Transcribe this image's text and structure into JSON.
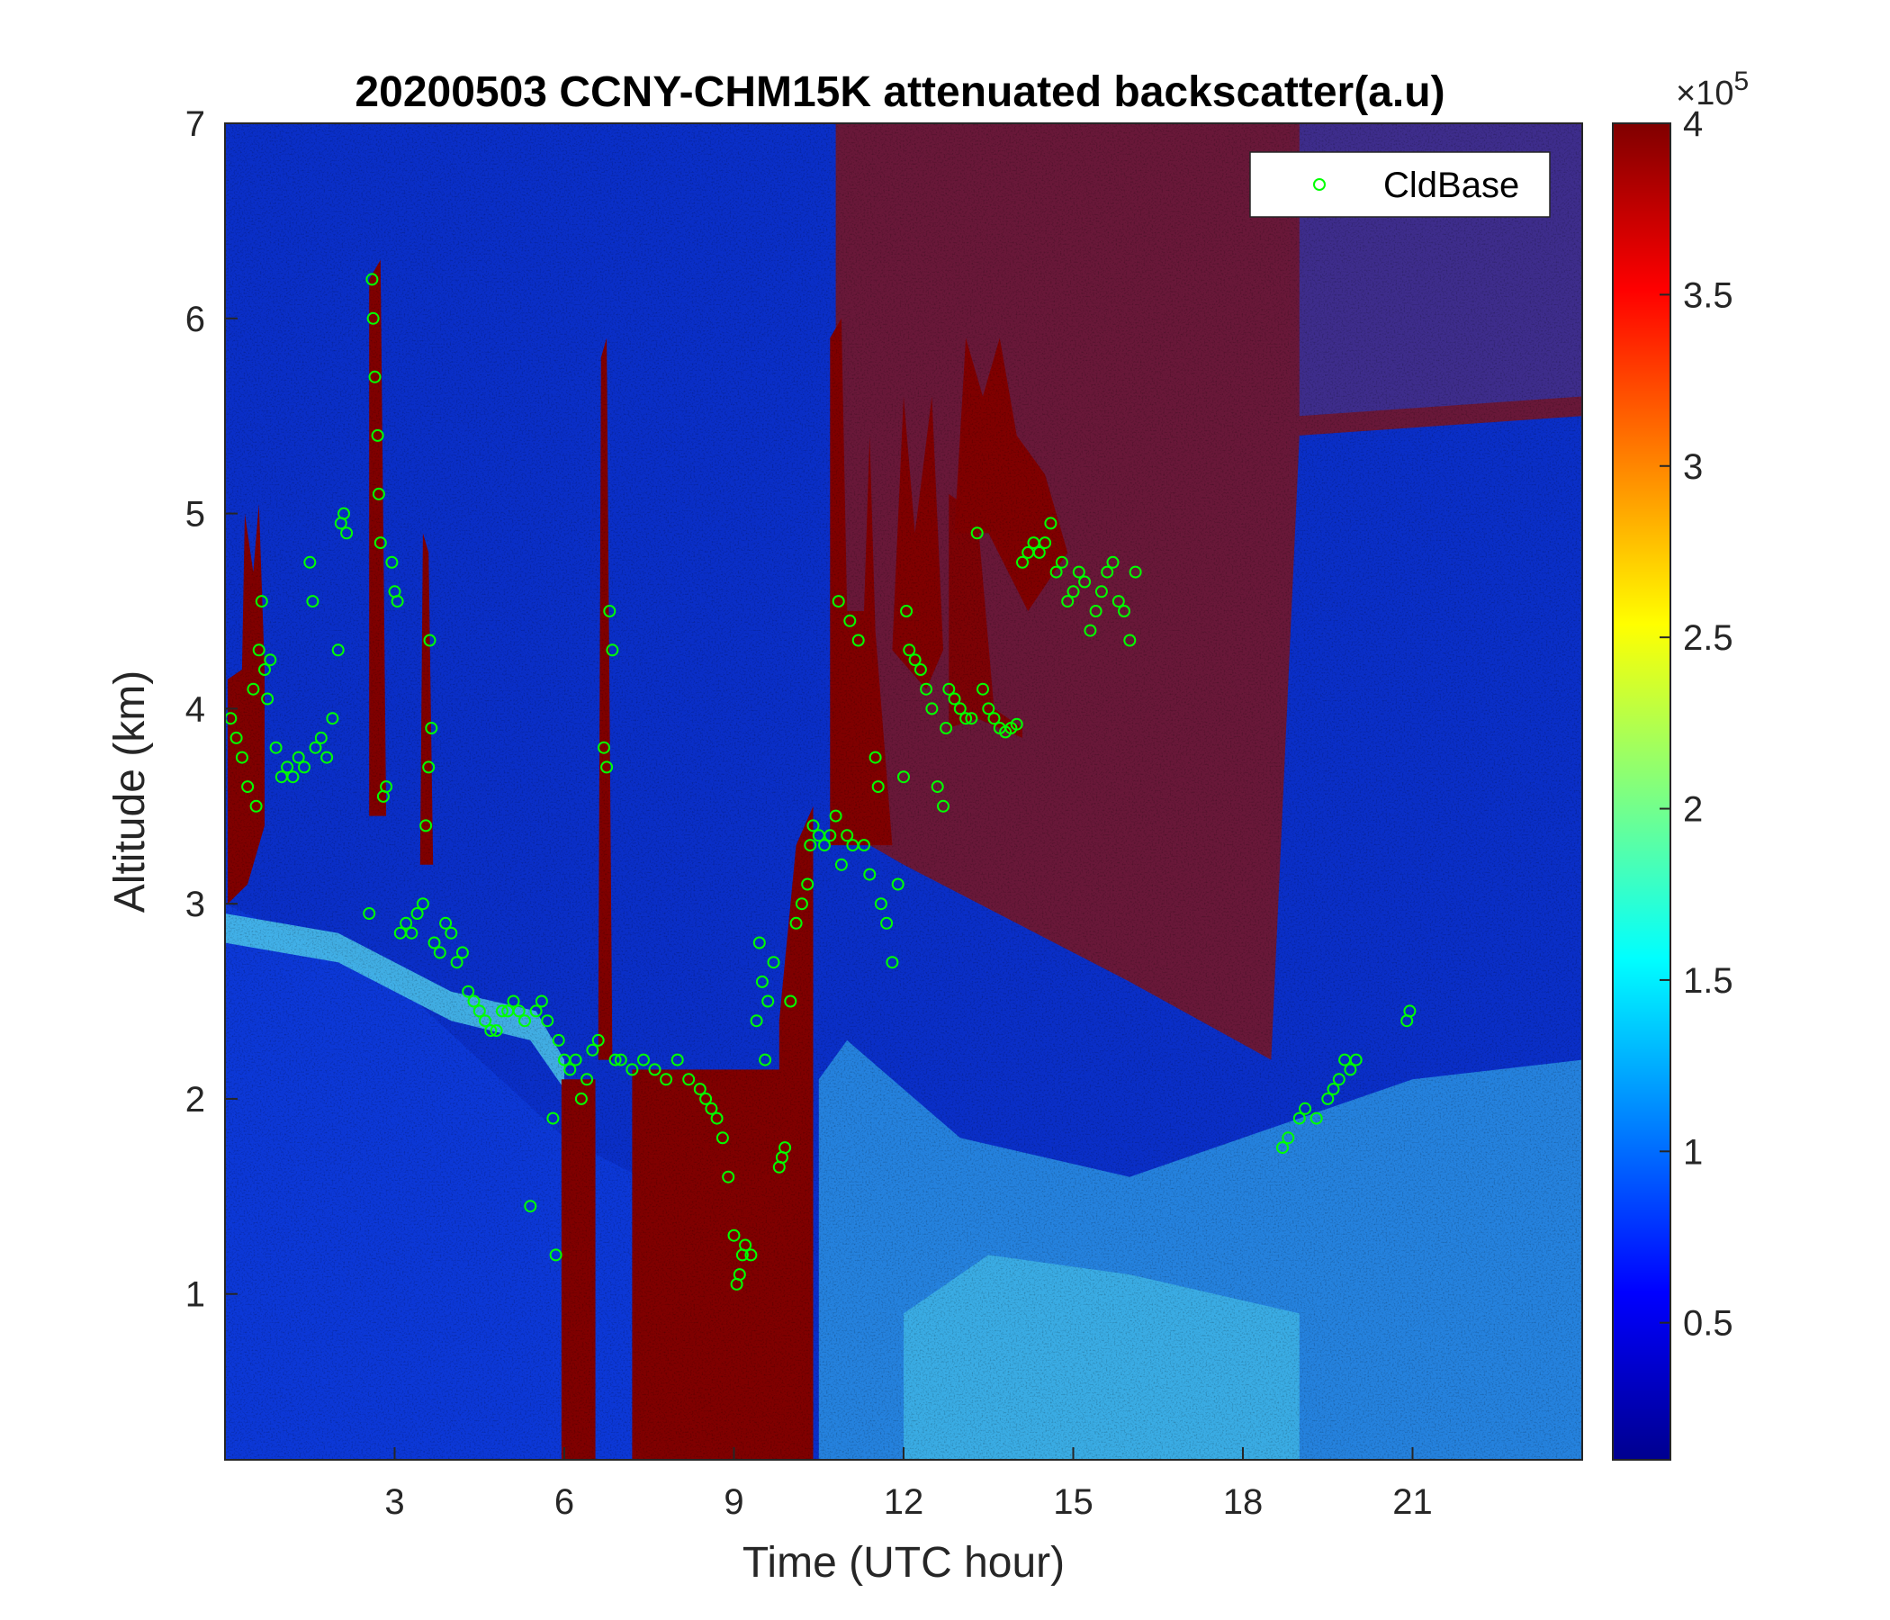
{
  "chart_data": {
    "type": "heatmap",
    "title": "20200503 CCNY-CHM15K attenuated backscatter(a.u)",
    "xlabel": "Time (UTC hour)",
    "ylabel": "Altitude (km)",
    "xlim": [
      0,
      24
    ],
    "ylim": [
      0.15,
      7
    ],
    "xticks": [
      3,
      6,
      9,
      12,
      15,
      18,
      21
    ],
    "yticks": [
      1,
      2,
      3,
      4,
      5,
      6,
      7
    ],
    "colorbar": {
      "colormap": "jet",
      "clim": [
        0.1,
        4
      ],
      "ticks": [
        0.5,
        1,
        1.5,
        2,
        2.5,
        3,
        3.5,
        4
      ],
      "exponent_base": "×10",
      "exponent_power": "5"
    },
    "legend": {
      "position": "top-right",
      "entries": [
        "CldBase"
      ]
    },
    "series": [
      {
        "name": "CldBase",
        "marker": "circle-open",
        "color": "#00ff00",
        "points": [
          [
            0.1,
            3.95
          ],
          [
            0.2,
            3.85
          ],
          [
            0.3,
            3.75
          ],
          [
            0.4,
            3.6
          ],
          [
            0.5,
            4.1
          ],
          [
            0.55,
            3.5
          ],
          [
            0.6,
            4.3
          ],
          [
            0.65,
            4.55
          ],
          [
            0.7,
            4.2
          ],
          [
            0.75,
            4.05
          ],
          [
            0.8,
            4.25
          ],
          [
            0.9,
            3.8
          ],
          [
            1.0,
            3.65
          ],
          [
            1.1,
            3.7
          ],
          [
            1.2,
            3.65
          ],
          [
            1.3,
            3.75
          ],
          [
            1.4,
            3.7
          ],
          [
            1.5,
            4.75
          ],
          [
            1.55,
            4.55
          ],
          [
            1.6,
            3.8
          ],
          [
            1.7,
            3.85
          ],
          [
            1.8,
            3.75
          ],
          [
            1.9,
            3.95
          ],
          [
            2.0,
            4.3
          ],
          [
            2.05,
            4.95
          ],
          [
            2.1,
            5.0
          ],
          [
            2.15,
            4.9
          ],
          [
            2.55,
            2.95
          ],
          [
            2.6,
            6.2
          ],
          [
            2.62,
            6.0
          ],
          [
            2.65,
            5.7
          ],
          [
            2.7,
            5.4
          ],
          [
            2.72,
            5.1
          ],
          [
            2.75,
            4.85
          ],
          [
            2.8,
            3.55
          ],
          [
            2.85,
            3.6
          ],
          [
            2.95,
            4.75
          ],
          [
            3.0,
            4.6
          ],
          [
            3.05,
            4.55
          ],
          [
            3.1,
            2.85
          ],
          [
            3.2,
            2.9
          ],
          [
            3.3,
            2.85
          ],
          [
            3.4,
            2.95
          ],
          [
            3.5,
            3.0
          ],
          [
            3.55,
            3.4
          ],
          [
            3.6,
            3.7
          ],
          [
            3.62,
            4.35
          ],
          [
            3.65,
            3.9
          ],
          [
            3.7,
            2.8
          ],
          [
            3.8,
            2.75
          ],
          [
            3.9,
            2.9
          ],
          [
            4.0,
            2.85
          ],
          [
            4.1,
            2.7
          ],
          [
            4.2,
            2.75
          ],
          [
            4.3,
            2.55
          ],
          [
            4.4,
            2.5
          ],
          [
            4.5,
            2.45
          ],
          [
            4.6,
            2.4
          ],
          [
            4.7,
            2.35
          ],
          [
            4.8,
            2.35
          ],
          [
            4.9,
            2.45
          ],
          [
            5.0,
            2.45
          ],
          [
            5.1,
            2.5
          ],
          [
            5.2,
            2.45
          ],
          [
            5.3,
            2.4
          ],
          [
            5.4,
            1.45
          ],
          [
            5.5,
            2.45
          ],
          [
            5.6,
            2.5
          ],
          [
            5.7,
            2.4
          ],
          [
            5.8,
            1.9
          ],
          [
            5.85,
            1.2
          ],
          [
            5.9,
            2.3
          ],
          [
            6.0,
            2.2
          ],
          [
            6.1,
            2.15
          ],
          [
            6.2,
            2.2
          ],
          [
            6.3,
            2.0
          ],
          [
            6.4,
            2.1
          ],
          [
            6.5,
            2.25
          ],
          [
            6.6,
            2.3
          ],
          [
            6.7,
            3.8
          ],
          [
            6.75,
            3.7
          ],
          [
            6.8,
            4.5
          ],
          [
            6.85,
            4.3
          ],
          [
            6.9,
            2.2
          ],
          [
            7.0,
            2.2
          ],
          [
            7.2,
            2.15
          ],
          [
            7.4,
            2.2
          ],
          [
            7.6,
            2.15
          ],
          [
            7.8,
            2.1
          ],
          [
            8.0,
            2.2
          ],
          [
            8.2,
            2.1
          ],
          [
            8.4,
            2.05
          ],
          [
            8.5,
            2.0
          ],
          [
            8.6,
            1.95
          ],
          [
            8.7,
            1.9
          ],
          [
            8.8,
            1.8
          ],
          [
            8.9,
            1.6
          ],
          [
            9.0,
            1.3
          ],
          [
            9.05,
            1.05
          ],
          [
            9.1,
            1.1
          ],
          [
            9.15,
            1.2
          ],
          [
            9.2,
            1.25
          ],
          [
            9.3,
            1.2
          ],
          [
            9.4,
            2.4
          ],
          [
            9.45,
            2.8
          ],
          [
            9.5,
            2.6
          ],
          [
            9.55,
            2.2
          ],
          [
            9.6,
            2.5
          ],
          [
            9.7,
            2.7
          ],
          [
            9.8,
            1.65
          ],
          [
            9.85,
            1.7
          ],
          [
            9.9,
            1.75
          ],
          [
            10.0,
            2.5
          ],
          [
            10.1,
            2.9
          ],
          [
            10.2,
            3.0
          ],
          [
            10.3,
            3.1
          ],
          [
            10.35,
            3.3
          ],
          [
            10.4,
            3.4
          ],
          [
            10.5,
            3.35
          ],
          [
            10.6,
            3.3
          ],
          [
            10.7,
            3.35
          ],
          [
            10.8,
            3.45
          ],
          [
            10.85,
            4.55
          ],
          [
            10.9,
            3.2
          ],
          [
            11.0,
            3.35
          ],
          [
            11.05,
            4.45
          ],
          [
            11.1,
            3.3
          ],
          [
            11.2,
            4.35
          ],
          [
            11.3,
            3.3
          ],
          [
            11.4,
            3.15
          ],
          [
            11.5,
            3.75
          ],
          [
            11.55,
            3.6
          ],
          [
            11.6,
            3.0
          ],
          [
            11.7,
            2.9
          ],
          [
            11.8,
            2.7
          ],
          [
            11.9,
            3.1
          ],
          [
            12.0,
            3.65
          ],
          [
            12.05,
            4.5
          ],
          [
            12.1,
            4.3
          ],
          [
            12.2,
            4.25
          ],
          [
            12.3,
            4.2
          ],
          [
            12.4,
            4.1
          ],
          [
            12.5,
            4.0
          ],
          [
            12.6,
            3.6
          ],
          [
            12.7,
            3.5
          ],
          [
            12.75,
            3.9
          ],
          [
            12.8,
            4.1
          ],
          [
            12.9,
            4.05
          ],
          [
            13.0,
            4.0
          ],
          [
            13.1,
            3.95
          ],
          [
            13.2,
            3.95
          ],
          [
            13.3,
            4.9
          ],
          [
            13.4,
            4.1
          ],
          [
            13.5,
            4.0
          ],
          [
            13.6,
            3.95
          ],
          [
            13.7,
            3.9
          ],
          [
            13.8,
            3.88
          ],
          [
            13.9,
            3.9
          ],
          [
            14.0,
            3.92
          ],
          [
            14.1,
            4.75
          ],
          [
            14.2,
            4.8
          ],
          [
            14.3,
            4.85
          ],
          [
            14.4,
            4.8
          ],
          [
            14.5,
            4.85
          ],
          [
            14.6,
            4.95
          ],
          [
            14.7,
            4.7
          ],
          [
            14.8,
            4.75
          ],
          [
            14.9,
            4.55
          ],
          [
            15.0,
            4.6
          ],
          [
            15.1,
            4.7
          ],
          [
            15.2,
            4.65
          ],
          [
            15.3,
            4.4
          ],
          [
            15.4,
            4.5
          ],
          [
            15.5,
            4.6
          ],
          [
            15.6,
            4.7
          ],
          [
            15.7,
            4.75
          ],
          [
            15.8,
            4.55
          ],
          [
            15.9,
            4.5
          ],
          [
            16.0,
            4.35
          ],
          [
            16.1,
            4.7
          ],
          [
            18.7,
            1.75
          ],
          [
            18.8,
            1.8
          ],
          [
            19.0,
            1.9
          ],
          [
            19.1,
            1.95
          ],
          [
            19.3,
            1.9
          ],
          [
            19.5,
            2.0
          ],
          [
            19.6,
            2.05
          ],
          [
            19.7,
            2.1
          ],
          [
            19.8,
            2.2
          ],
          [
            19.9,
            2.15
          ],
          [
            20.0,
            2.2
          ],
          [
            20.9,
            2.4
          ],
          [
            20.95,
            2.45
          ]
        ]
      }
    ]
  }
}
